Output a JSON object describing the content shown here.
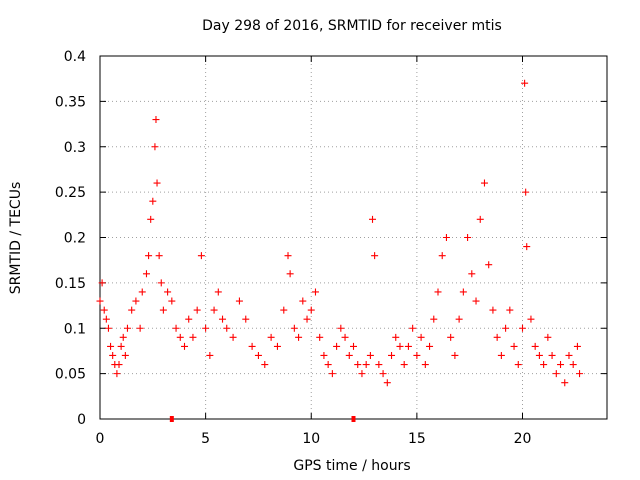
{
  "chart_data": {
    "type": "scatter",
    "title": "Day 298 of 2016, SRMTID for receiver mtis",
    "xlabel": "GPS time / hours",
    "ylabel": "SRMTID / TECUs",
    "xlim": [
      0,
      24
    ],
    "ylim": [
      0,
      0.4
    ],
    "xticks": [
      0,
      5,
      10,
      15,
      20
    ],
    "xtick_labels": [
      "0",
      "5",
      "10",
      "15",
      "20"
    ],
    "yticks": [
      0,
      0.05,
      0.1,
      0.15,
      0.2,
      0.25,
      0.3,
      0.35,
      0.4
    ],
    "ytick_labels": [
      "0",
      "0.05",
      "0.1",
      "0.15",
      "0.2",
      "0.25",
      "0.3",
      "0.35",
      "0.4"
    ],
    "grid": true,
    "marker": "plus",
    "color": "#ff0000",
    "series": [
      {
        "name": "SRMTID",
        "points": [
          [
            0.0,
            0.13
          ],
          [
            0.1,
            0.15
          ],
          [
            0.2,
            0.12
          ],
          [
            0.3,
            0.11
          ],
          [
            0.4,
            0.1
          ],
          [
            0.5,
            0.08
          ],
          [
            0.6,
            0.07
          ],
          [
            0.7,
            0.06
          ],
          [
            0.8,
            0.05
          ],
          [
            0.9,
            0.06
          ],
          [
            1.0,
            0.08
          ],
          [
            1.1,
            0.09
          ],
          [
            1.2,
            0.07
          ],
          [
            1.3,
            0.1
          ],
          [
            1.5,
            0.12
          ],
          [
            1.7,
            0.13
          ],
          [
            1.9,
            0.1
          ],
          [
            2.0,
            0.14
          ],
          [
            2.2,
            0.16
          ],
          [
            2.3,
            0.18
          ],
          [
            2.4,
            0.22
          ],
          [
            2.5,
            0.24
          ],
          [
            2.6,
            0.3
          ],
          [
            2.65,
            0.33
          ],
          [
            2.7,
            0.26
          ],
          [
            2.8,
            0.18
          ],
          [
            2.9,
            0.15
          ],
          [
            3.0,
            0.12
          ],
          [
            3.2,
            0.14
          ],
          [
            3.4,
            0.13
          ],
          [
            3.6,
            0.1
          ],
          [
            3.8,
            0.09
          ],
          [
            4.0,
            0.08
          ],
          [
            4.2,
            0.11
          ],
          [
            4.4,
            0.09
          ],
          [
            4.6,
            0.12
          ],
          [
            4.8,
            0.18
          ],
          [
            5.0,
            0.1
          ],
          [
            5.2,
            0.07
          ],
          [
            5.4,
            0.12
          ],
          [
            5.6,
            0.14
          ],
          [
            5.8,
            0.11
          ],
          [
            6.0,
            0.1
          ],
          [
            6.3,
            0.09
          ],
          [
            6.6,
            0.13
          ],
          [
            6.9,
            0.11
          ],
          [
            7.2,
            0.08
          ],
          [
            7.5,
            0.07
          ],
          [
            7.8,
            0.06
          ],
          [
            8.1,
            0.09
          ],
          [
            8.4,
            0.08
          ],
          [
            8.7,
            0.12
          ],
          [
            8.9,
            0.18
          ],
          [
            9.0,
            0.16
          ],
          [
            9.2,
            0.1
          ],
          [
            9.4,
            0.09
          ],
          [
            9.6,
            0.13
          ],
          [
            9.8,
            0.11
          ],
          [
            10.0,
            0.12
          ],
          [
            10.2,
            0.14
          ],
          [
            10.4,
            0.09
          ],
          [
            10.6,
            0.07
          ],
          [
            10.8,
            0.06
          ],
          [
            11.0,
            0.05
          ],
          [
            11.2,
            0.08
          ],
          [
            11.4,
            0.1
          ],
          [
            11.6,
            0.09
          ],
          [
            11.8,
            0.07
          ],
          [
            12.0,
            0.08
          ],
          [
            12.2,
            0.06
          ],
          [
            12.4,
            0.05
          ],
          [
            12.6,
            0.06
          ],
          [
            12.8,
            0.07
          ],
          [
            12.9,
            0.22
          ],
          [
            13.0,
            0.18
          ],
          [
            13.2,
            0.06
          ],
          [
            13.4,
            0.05
          ],
          [
            13.6,
            0.04
          ],
          [
            13.8,
            0.07
          ],
          [
            14.0,
            0.09
          ],
          [
            14.2,
            0.08
          ],
          [
            14.4,
            0.06
          ],
          [
            14.6,
            0.08
          ],
          [
            14.8,
            0.1
          ],
          [
            15.0,
            0.07
          ],
          [
            15.2,
            0.09
          ],
          [
            15.4,
            0.06
          ],
          [
            15.6,
            0.08
          ],
          [
            15.8,
            0.11
          ],
          [
            16.0,
            0.14
          ],
          [
            16.2,
            0.18
          ],
          [
            16.4,
            0.2
          ],
          [
            16.6,
            0.09
          ],
          [
            16.8,
            0.07
          ],
          [
            17.0,
            0.11
          ],
          [
            17.2,
            0.14
          ],
          [
            17.4,
            0.2
          ],
          [
            17.6,
            0.16
          ],
          [
            17.8,
            0.13
          ],
          [
            18.0,
            0.22
          ],
          [
            18.2,
            0.26
          ],
          [
            18.4,
            0.17
          ],
          [
            18.6,
            0.12
          ],
          [
            18.8,
            0.09
          ],
          [
            19.0,
            0.07
          ],
          [
            19.2,
            0.1
          ],
          [
            19.4,
            0.12
          ],
          [
            19.6,
            0.08
          ],
          [
            19.8,
            0.06
          ],
          [
            20.0,
            0.1
          ],
          [
            20.1,
            0.37
          ],
          [
            20.15,
            0.25
          ],
          [
            20.2,
            0.19
          ],
          [
            20.4,
            0.11
          ],
          [
            20.6,
            0.08
          ],
          [
            20.8,
            0.07
          ],
          [
            21.0,
            0.06
          ],
          [
            21.2,
            0.09
          ],
          [
            21.4,
            0.07
          ],
          [
            21.6,
            0.05
          ],
          [
            21.8,
            0.06
          ],
          [
            22.0,
            0.04
          ],
          [
            22.2,
            0.07
          ],
          [
            22.4,
            0.06
          ],
          [
            22.6,
            0.08
          ],
          [
            22.7,
            0.05
          ]
        ]
      }
    ],
    "markers_on_axis": [
      3.4,
      12.0
    ]
  }
}
